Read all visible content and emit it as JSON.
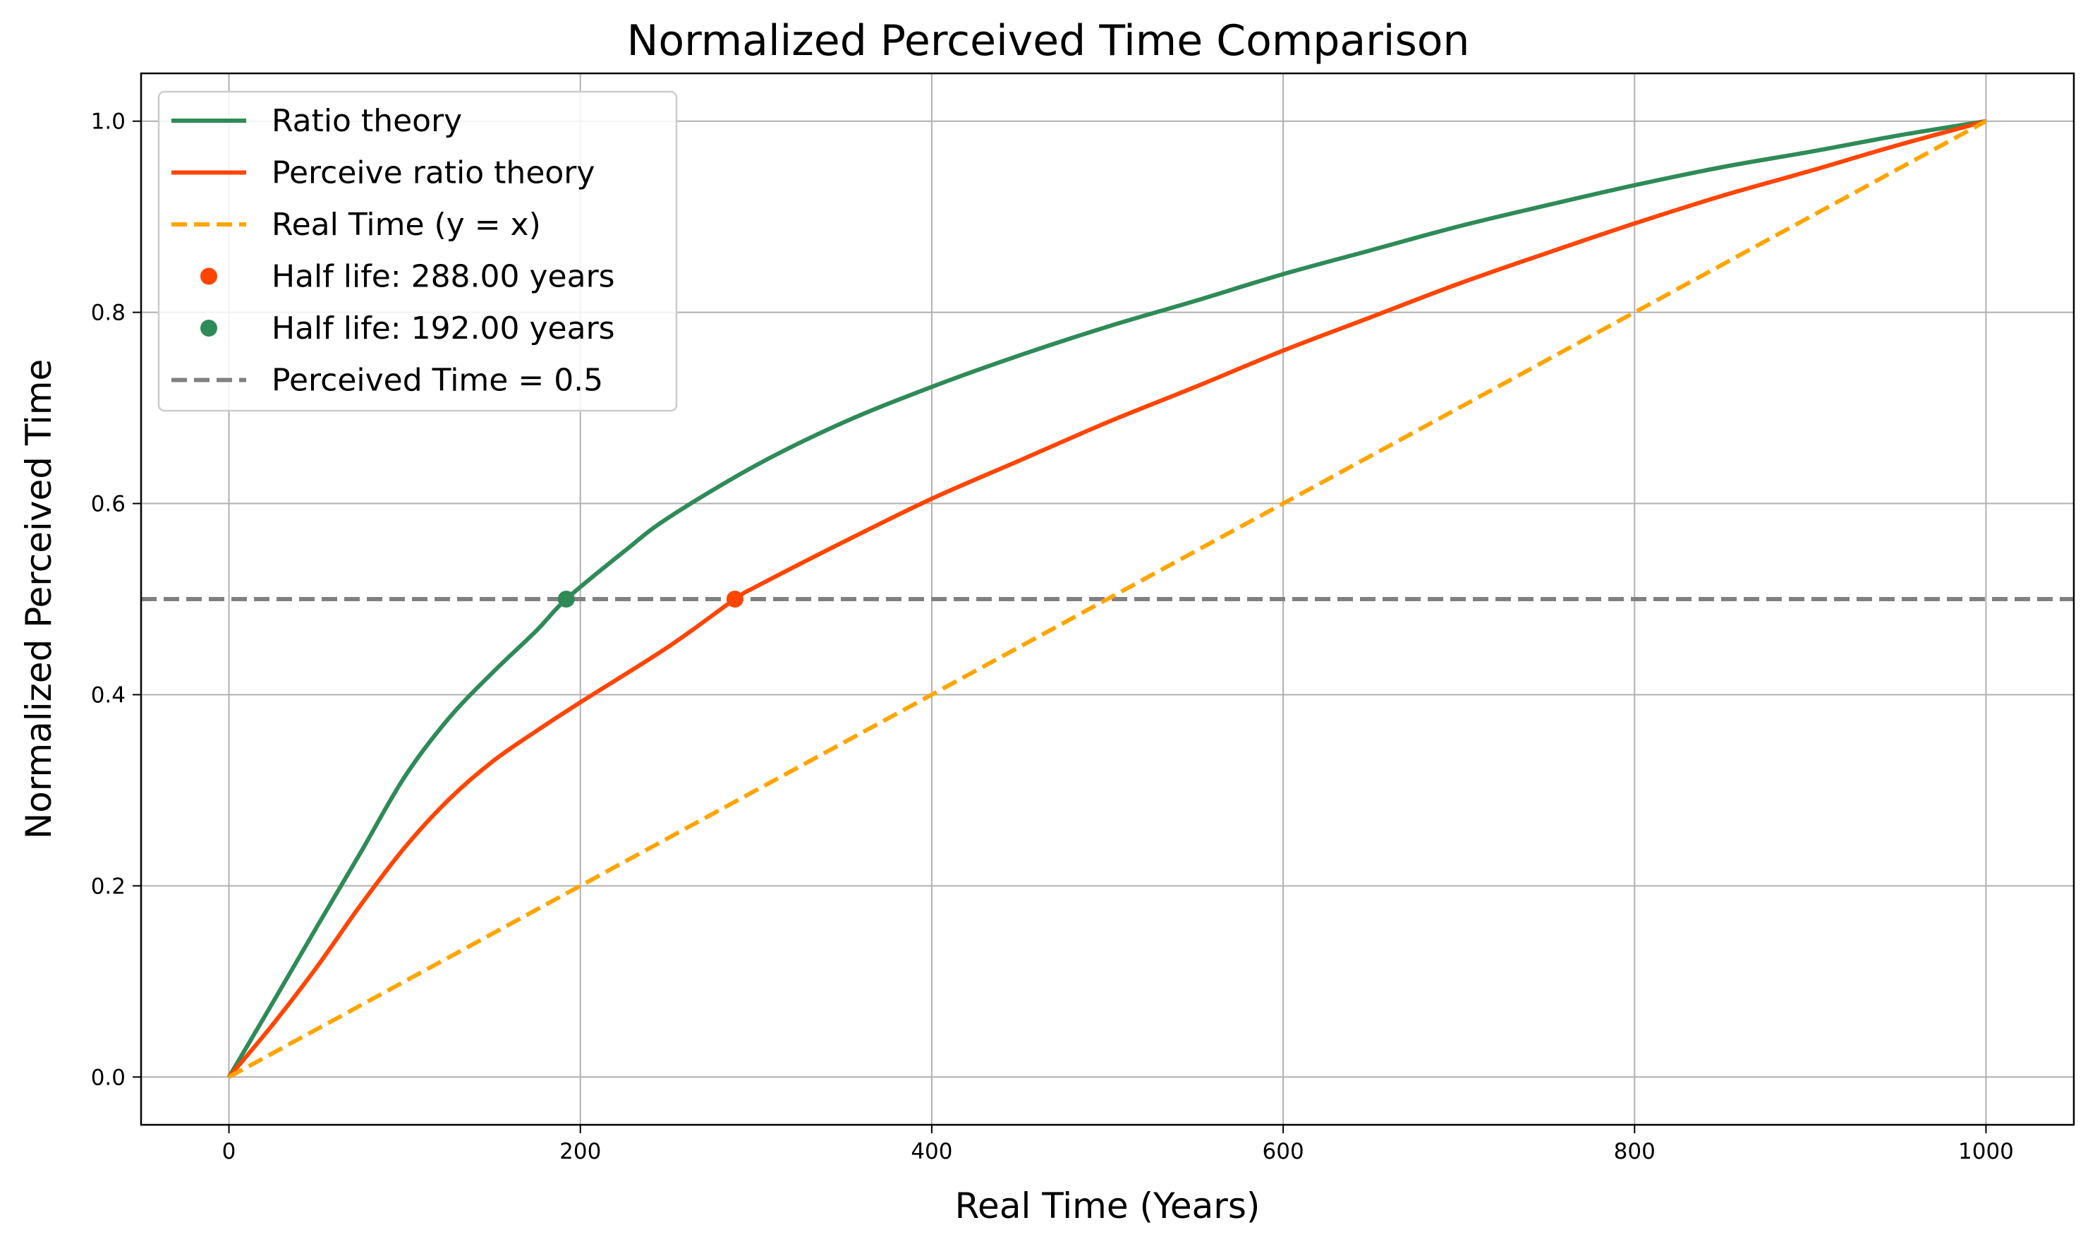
{
  "chart_data": {
    "type": "line",
    "title": "Normalized Perceived Time Comparison",
    "xlabel": "Real Time (Years)",
    "ylabel": "Normalized Perceived Time",
    "xlim": [
      -50,
      1050
    ],
    "ylim": [
      -0.05,
      1.05
    ],
    "xticks": [
      0,
      200,
      400,
      600,
      800,
      1000
    ],
    "xtick_labels": [
      "0",
      "200",
      "400",
      "600",
      "800",
      "1000"
    ],
    "yticks": [
      0.0,
      0.2,
      0.4,
      0.6,
      0.8,
      1.0
    ],
    "ytick_labels": [
      "0.0",
      "0.2",
      "0.4",
      "0.6",
      "0.8",
      "1.0"
    ],
    "grid": true,
    "legend_position": "top-left",
    "series": [
      {
        "name": "Ratio theory",
        "color": "#2e8b57",
        "style": "solid",
        "x": [
          0,
          25,
          50,
          75,
          100,
          125,
          150,
          175,
          192,
          225,
          250,
          300,
          350,
          400,
          450,
          500,
          550,
          600,
          650,
          700,
          750,
          800,
          850,
          900,
          950,
          1000
        ],
        "y": [
          0,
          0.078,
          0.157,
          0.235,
          0.314,
          0.375,
          0.423,
          0.467,
          0.5,
          0.55,
          0.585,
          0.64,
          0.685,
          0.722,
          0.755,
          0.785,
          0.812,
          0.84,
          0.865,
          0.89,
          0.912,
          0.933,
          0.952,
          0.968,
          0.985,
          1.0
        ]
      },
      {
        "name": "Perceive ratio theory",
        "color": "#ff4500",
        "style": "solid",
        "x": [
          0,
          25,
          50,
          75,
          100,
          125,
          150,
          175,
          200,
          250,
          288,
          300,
          350,
          400,
          450,
          500,
          550,
          600,
          650,
          700,
          750,
          800,
          850,
          900,
          950,
          1000
        ],
        "y": [
          0,
          0.055,
          0.115,
          0.18,
          0.24,
          0.29,
          0.33,
          0.362,
          0.392,
          0.45,
          0.5,
          0.513,
          0.56,
          0.605,
          0.645,
          0.685,
          0.722,
          0.76,
          0.795,
          0.83,
          0.862,
          0.893,
          0.922,
          0.948,
          0.975,
          1.0
        ]
      },
      {
        "name": "Real Time (y = x)",
        "color": "#ffa500",
        "style": "dashed",
        "x": [
          0,
          1000
        ],
        "y": [
          0,
          1.0
        ]
      }
    ],
    "points": [
      {
        "name": "Half life: 288.00 years",
        "color": "#ff4500",
        "x": 288,
        "y": 0.5
      },
      {
        "name": "Half life: 192.00 years",
        "color": "#2e8b57",
        "x": 192,
        "y": 0.5
      }
    ],
    "hlines": [
      {
        "name": "Perceived Time = 0.5",
        "color": "#808080",
        "style": "dashed",
        "y": 0.5
      }
    ],
    "legend": [
      {
        "label": "Ratio theory",
        "kind": "line",
        "color": "#2e8b57",
        "style": "solid"
      },
      {
        "label": "Perceive ratio theory",
        "kind": "line",
        "color": "#ff4500",
        "style": "solid"
      },
      {
        "label": "Real Time (y = x)",
        "kind": "line",
        "color": "#ffa500",
        "style": "dashed"
      },
      {
        "label": "Half life: 288.00 years",
        "kind": "marker",
        "color": "#ff4500",
        "style": "dot"
      },
      {
        "label": "Half life: 192.00 years",
        "kind": "marker",
        "color": "#2e8b57",
        "style": "dot"
      },
      {
        "label": "Perceived Time = 0.5",
        "kind": "line",
        "color": "#808080",
        "style": "dashed"
      }
    ]
  }
}
